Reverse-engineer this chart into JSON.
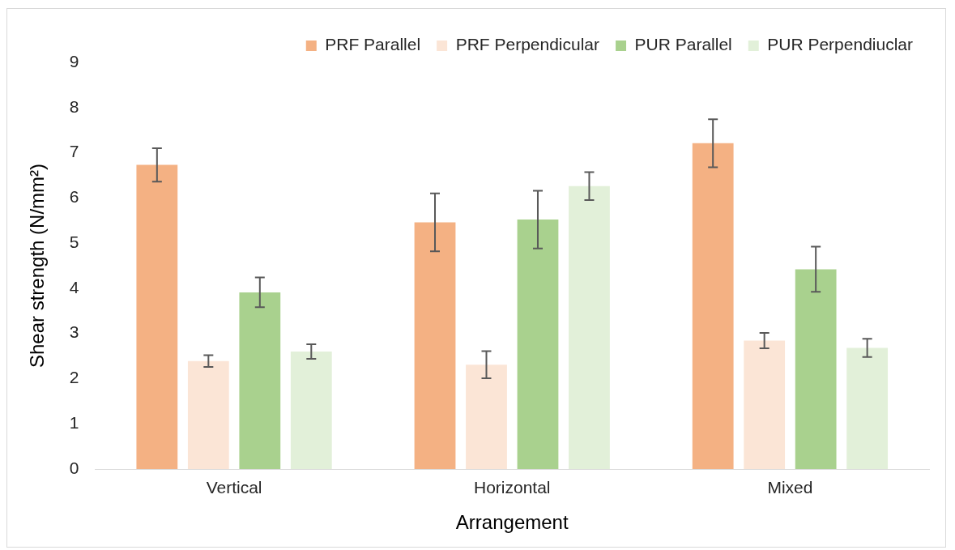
{
  "chart_data": {
    "type": "bar",
    "xlabel": "Arrangement",
    "ylabel": "Shear strength (N/mm²)",
    "categories": [
      "Vertical",
      "Horizontal",
      "Mixed"
    ],
    "series": [
      {
        "name": "PRF Parallel",
        "color": "#f4b183",
        "values": [
          6.73,
          5.46,
          7.21
        ],
        "errors": [
          0.37,
          0.64,
          0.53
        ]
      },
      {
        "name": "PRF Perpendicular",
        "color": "#fbe5d6",
        "values": [
          2.39,
          2.31,
          2.84
        ],
        "errors": [
          0.13,
          0.3,
          0.17
        ]
      },
      {
        "name": "PUR Parallel",
        "color": "#a9d18e",
        "values": [
          3.91,
          5.52,
          4.42
        ],
        "errors": [
          0.33,
          0.64,
          0.5
        ]
      },
      {
        "name": "PUR Perpendiuclar",
        "color": "#e2f0d9",
        "values": [
          2.6,
          6.26,
          2.68
        ],
        "errors": [
          0.16,
          0.31,
          0.2
        ]
      }
    ],
    "ylim": [
      0,
      9
    ],
    "yticks": [
      0,
      1,
      2,
      3,
      4,
      5,
      6,
      7,
      8,
      9
    ],
    "grid": false,
    "legend": "top"
  }
}
